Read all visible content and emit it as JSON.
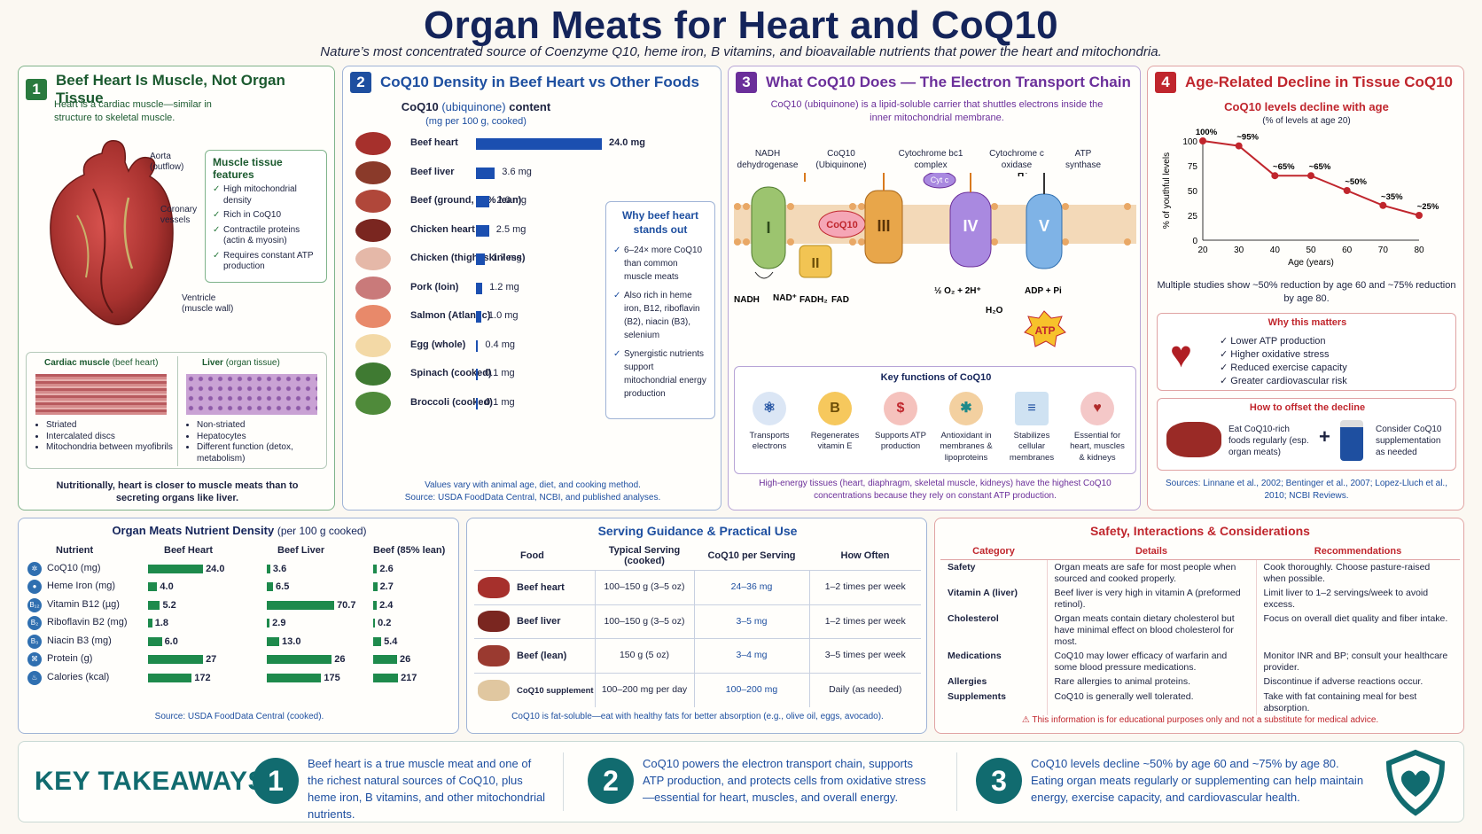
{
  "header": {
    "title": "Organ Meats for Heart and CoQ10",
    "subtitle": "Nature’s most concentrated source of Coenzyme Q10, heme iron, B vitamins, and bioavailable nutrients that power the heart and mitochondria."
  },
  "panel1": {
    "number": "1",
    "title": "Beef Heart Is Muscle, Not Organ Tissue",
    "intro": "Heart is a cardiac muscle—similar in structure to skeletal muscle.",
    "labels": {
      "aorta": "Aorta",
      "aorta_sub": "(outflow)",
      "coronary": "Coronary",
      "coronary_sub": "vessels",
      "ventricle": "Ventricle",
      "ventricle_sub": "(muscle wall)"
    },
    "features_title": "Muscle tissue features",
    "features": [
      "High mitochondrial density",
      "Rich in CoQ10",
      "Contractile proteins (actin & myosin)",
      "Requires constant ATP production"
    ],
    "cardiac_title": "Cardiac muscle",
    "cardiac_sub": "(beef heart)",
    "cardiac_points": [
      "Striated",
      "Intercalated discs",
      "Mitochondria between myofibrils"
    ],
    "liver_title": "Liver",
    "liver_sub": "(organ tissue)",
    "liver_points": [
      "Non-striated",
      "Hepatocytes",
      "Different function (detox, metabolism)"
    ],
    "footer": "Nutritionally, heart is closer to muscle meats than to secreting organs like liver."
  },
  "panel2": {
    "number": "2",
    "title": "CoQ10 Density in Beef Heart vs Other Foods",
    "chart_title_a": "CoQ10",
    "chart_title_b": "(ubiquinone)",
    "chart_title_c": "content",
    "chart_units": "(mg per 100 g, cooked)",
    "why_title": "Why beef heart stands out",
    "why_points": [
      "6–24× more CoQ10 than common muscle meats",
      "Also rich in heme iron, B12, riboflavin (B2), niacin (B3), selenium",
      "Synergistic nutrients support mitochondrial energy production"
    ],
    "footer1": "Values vary with animal age, diet, and cooking method.",
    "footer2": "Source: USDA FoodData Central, NCBI, and published analyses."
  },
  "chart_data": [
    {
      "type": "bar",
      "title": "CoQ10 (ubiquinone) content",
      "ylabel": "(mg per 100 g, cooked)",
      "categories": [
        "Beef heart",
        "Beef liver",
        "Beef (ground, 85% lean)",
        "Chicken heart",
        "Chicken (thigh, skinless)",
        "Pork (loin)",
        "Salmon (Atlantic)",
        "Egg (whole)",
        "Spinach (cooked)",
        "Broccoli (cooked)"
      ],
      "values": [
        24.0,
        3.6,
        2.6,
        2.5,
        1.7,
        1.2,
        1.0,
        0.4,
        0.1,
        0.1
      ],
      "value_labels": [
        "24.0 mg",
        "3.6 mg",
        "2.6 mg",
        "2.5 mg",
        "1.7 mg",
        "1.2 mg",
        "1.0 mg",
        "0.4 mg",
        "0.1 mg",
        "0.1 mg"
      ]
    },
    {
      "type": "line",
      "title": "CoQ10 levels decline with age",
      "subtitle": "(% of levels at age 20)",
      "xlabel": "Age (years)",
      "ylabel": "% of youthful levels",
      "x": [
        20,
        30,
        40,
        50,
        60,
        70,
        80
      ],
      "y": [
        100,
        95,
        65,
        65,
        50,
        35,
        25
      ],
      "point_labels": [
        "100%",
        "~95%",
        "~65%",
        "~65%",
        "~50%",
        "~35%",
        "~25%"
      ],
      "xlim": [
        20,
        80
      ],
      "ylim": [
        0,
        100
      ],
      "yticks": [
        0,
        25,
        50,
        75,
        100
      ]
    }
  ],
  "panel3": {
    "number": "3",
    "title": "What CoQ10 Does — The Electron Transport Chain",
    "intro": "CoQ10 (ubiquinone) is a lipid-soluble carrier that shuttles electrons inside the inner mitochondrial membrane.",
    "complex_labels": [
      "NADH dehydrogenase",
      "CoQ10 (Ubiquinone)",
      "Cytochrome bc1 complex",
      "Cytochrome c oxidase",
      "ATP synthase"
    ],
    "roman": [
      "I",
      "II",
      "III",
      "IV",
      "V"
    ],
    "coq10": "CoQ10",
    "cytc": "Cyt c",
    "hplus": "H⁺",
    "nadh": "NADH",
    "nad": "NAD⁺",
    "fadh2": "FADH₂",
    "fad": "FAD",
    "o2": "½ O₂ + 2H⁺",
    "h2o": "H₂O",
    "adp": "ADP + Pi",
    "atp": "ATP",
    "key_title": "Key functions of CoQ10",
    "key_functions": [
      "Transports electrons",
      "Regenerates vitamin E",
      "Supports ATP production",
      "Antioxidant in membranes & lipoproteins",
      "Stabilizes cellular membranes",
      "Essential for heart, muscles & kidneys"
    ],
    "vitamin_letter": "B",
    "footer": "High-energy tissues (heart, diaphragm, skeletal muscle, kidneys) have the highest CoQ10 concentrations because they rely on constant ATP production."
  },
  "panel4": {
    "number": "4",
    "title": "Age-Related Decline in Tissue CoQ10",
    "chart_title": "CoQ10 levels decline with age",
    "chart_sub": "(% of levels at age 20)",
    "ylabel": "% of youthful levels",
    "xlabel": "Age (years)",
    "note": "Multiple studies show ~50% reduction by age 60 and ~75% reduction by age 80.",
    "matters_title": "Why this matters",
    "matters": [
      "Lower ATP production",
      "Higher oxidative stress",
      "Reduced exercise capacity",
      "Greater cardiovascular risk"
    ],
    "offset_title": "How to offset the decline",
    "offset_a": "Eat CoQ10-rich foods regularly (esp. organ meats)",
    "offset_b": "Consider CoQ10 supplementation as needed",
    "plus": "+",
    "sources": "Sources: Linnane et al., 2002; Bentinger et al., 2007; Lopez-Lluch et al., 2010; NCBI Reviews."
  },
  "nutrient": {
    "title": "Organ Meats Nutrient Density",
    "title_sub": "(per 100 g cooked)",
    "headers": [
      "Nutrient",
      "Beef Heart",
      "Beef Liver",
      "Beef (85% lean)"
    ],
    "rows": [
      {
        "name": "CoQ10 (mg)",
        "icon": "✲",
        "vals": [
          "24.0",
          "3.6",
          "2.6"
        ],
        "nums": [
          24.0,
          3.6,
          2.6
        ]
      },
      {
        "name": "Heme Iron (mg)",
        "icon": "●",
        "vals": [
          "4.0",
          "6.5",
          "2.7"
        ],
        "nums": [
          4.0,
          6.5,
          2.7
        ]
      },
      {
        "name": "Vitamin B12 (µg)",
        "icon": "B₁₂",
        "vals": [
          "5.2",
          "70.7",
          "2.4"
        ],
        "nums": [
          5.2,
          70.7,
          2.4
        ]
      },
      {
        "name": "Riboflavin B2 (mg)",
        "icon": "B₂",
        "vals": [
          "1.8",
          "2.9",
          "0.2"
        ],
        "nums": [
          1.8,
          2.9,
          0.2
        ]
      },
      {
        "name": "Niacin B3 (mg)",
        "icon": "B₃",
        "vals": [
          "6.0",
          "13.0",
          "5.4"
        ],
        "nums": [
          6.0,
          13.0,
          5.4
        ]
      },
      {
        "name": "Protein (g)",
        "icon": "⌘",
        "vals": [
          "27",
          "26",
          "26"
        ],
        "nums": [
          27,
          26,
          26
        ]
      },
      {
        "name": "Calories (kcal)",
        "icon": "♨",
        "vals": [
          "172",
          "175",
          "217"
        ],
        "nums": [
          172,
          175,
          217
        ]
      }
    ],
    "source": "Source: USDA FoodData Central (cooked)."
  },
  "serving": {
    "title": "Serving Guidance & Practical Use",
    "headers": [
      "Food",
      "Typical Serving (cooked)",
      "CoQ10 per Serving",
      "How Often"
    ],
    "rows": [
      {
        "food": "Beef heart",
        "serving": "100–150 g (3–5 oz)",
        "coq10": "24–36 mg",
        "often": "1–2 times per week"
      },
      {
        "food": "Beef liver",
        "serving": "100–150 g (3–5 oz)",
        "coq10": "3–5 mg",
        "often": "1–2 times per week"
      },
      {
        "food": "Beef (lean)",
        "serving": "150 g (5 oz)",
        "coq10": "3–4 mg",
        "often": "3–5 times per week"
      },
      {
        "food": "CoQ10 supplement",
        "serving": "100–200 mg per day",
        "coq10": "100–200 mg",
        "often": "Daily (as needed)"
      }
    ],
    "footer": "CoQ10 is fat-soluble—eat with healthy fats for better absorption (e.g., olive oil, eggs, avocado)."
  },
  "safety": {
    "title": "Safety, Interactions & Considerations",
    "headers": [
      "Category",
      "Details",
      "Recommendations"
    ],
    "rows": [
      {
        "cat": "Safety",
        "details": "Organ meats are safe for most people when sourced and cooked properly.",
        "rec": "Cook thoroughly. Choose pasture-raised when possible."
      },
      {
        "cat": "Vitamin A (liver)",
        "details": "Beef liver is very high in vitamin A (preformed retinol).",
        "rec": "Limit liver to 1–2 servings/week to avoid excess."
      },
      {
        "cat": "Cholesterol",
        "details": "Organ meats contain dietary cholesterol but have minimal effect on blood cholesterol for most.",
        "rec": "Focus on overall diet quality and fiber intake."
      },
      {
        "cat": "Medications",
        "details": "CoQ10 may lower efficacy of warfarin and some blood pressure medications.",
        "rec": "Monitor INR and BP; consult your healthcare provider."
      },
      {
        "cat": "Allergies",
        "details": "Rare allergies to animal proteins.",
        "rec": "Discontinue if adverse reactions occur."
      },
      {
        "cat": "Supplements",
        "details": "CoQ10 is generally well tolerated.",
        "rec": "Take with fat containing meal for best absorption."
      }
    ],
    "disclaimer": "This information is for educational purposes only and not a substitute for medical advice."
  },
  "takeaways": {
    "title": "KEY TAKEAWAYS",
    "items": [
      {
        "num": "1",
        "text": "Beef heart is a true muscle meat and one of the richest natural sources of CoQ10, plus heme iron, B vitamins, and other mitochondrial nutrients."
      },
      {
        "num": "2",
        "text": "CoQ10 powers the electron transport chain, supports ATP production, and protects cells from oxidative stress—essential for heart, muscles, and overall energy."
      },
      {
        "num": "3",
        "text": "CoQ10 levels decline ~50% by age 60 and ~75% by age 80. Eating organ meats regularly or supplementing can help maintain energy, exercise capacity, and cardiovascular health."
      }
    ]
  },
  "colors": {
    "navy": "#14245a",
    "green": "#2a7a3e",
    "blue": "#1e4fa0",
    "purple": "#6b2f9a",
    "red": "#c0262d",
    "teal": "#116b6f",
    "bar_green": "#1e8a4c"
  }
}
